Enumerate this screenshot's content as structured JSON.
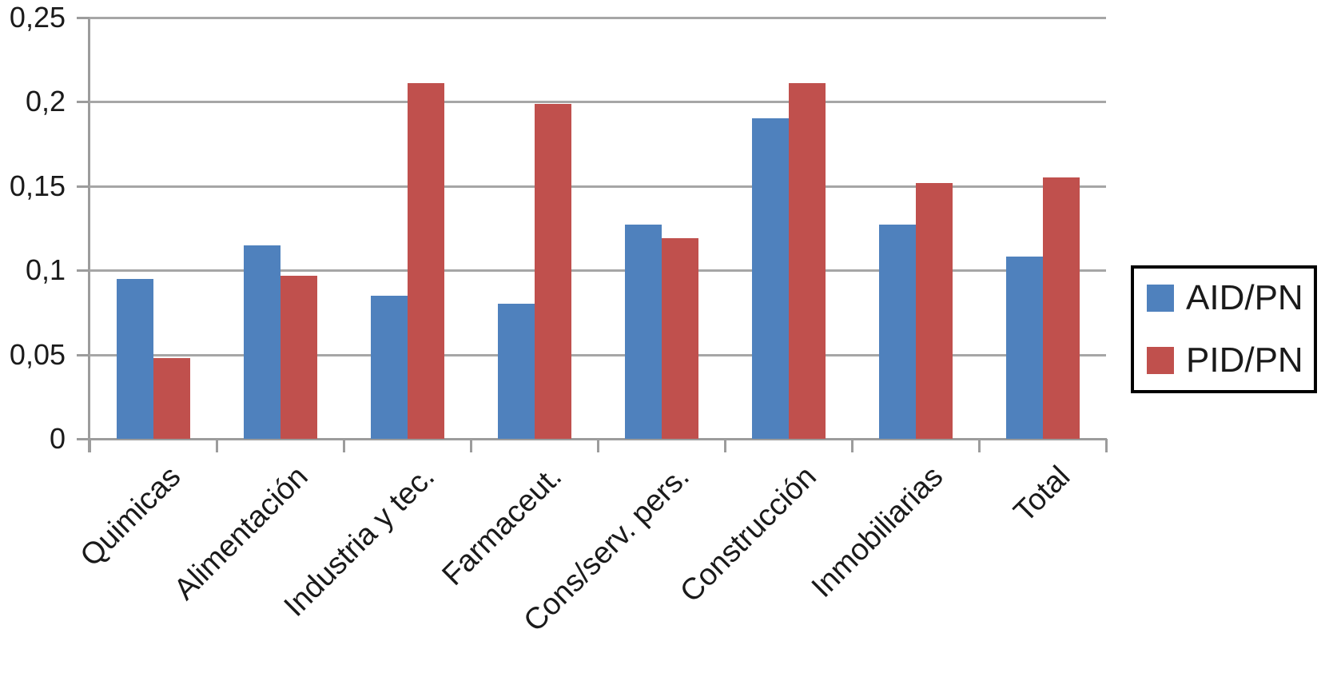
{
  "chart_data": {
    "type": "bar",
    "title": "",
    "xlabel": "",
    "ylabel": "",
    "categories": [
      "Quimicas",
      "Alimentación",
      "Industria y tec.",
      "Farmaceut.",
      "Cons/serv. pers.",
      "Construcción",
      "Inmobiliarias",
      "Total"
    ],
    "series": [
      {
        "name": "AID/PN",
        "color": "#4F81BD",
        "values": [
          0.095,
          0.115,
          0.085,
          0.08,
          0.127,
          0.19,
          0.127,
          0.108
        ]
      },
      {
        "name": "PID/PN",
        "color": "#C0504D",
        "values": [
          0.048,
          0.097,
          0.211,
          0.199,
          0.119,
          0.211,
          0.152,
          0.155
        ]
      }
    ],
    "ylim": [
      0,
      0.25
    ],
    "yticks": [
      {
        "value": 0,
        "label": "0"
      },
      {
        "value": 0.05,
        "label": "0,05"
      },
      {
        "value": 0.1,
        "label": "0,1"
      },
      {
        "value": 0.15,
        "label": "0,15"
      },
      {
        "value": 0.2,
        "label": "0,2"
      },
      {
        "value": 0.25,
        "label": "0,25"
      }
    ],
    "grid": "horizontal",
    "legend_position": "right",
    "colors": {
      "grid": "#A6A6A6",
      "axis": "#9C9C9C",
      "text": "#1A1A1A",
      "legend_border": "#000000",
      "background": "#FFFFFF"
    }
  }
}
